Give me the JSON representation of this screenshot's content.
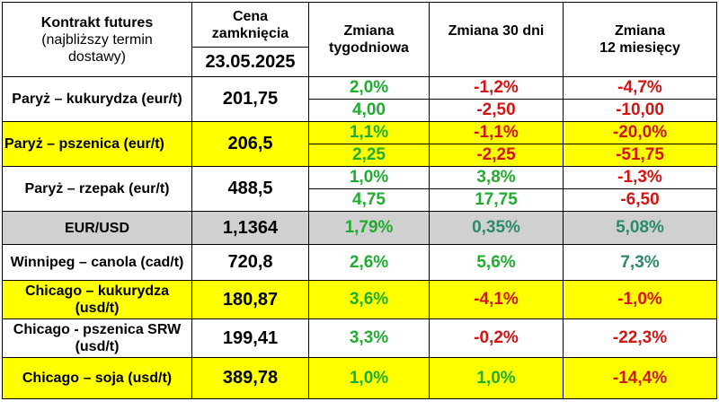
{
  "header": {
    "contract_title": "Kontrakt futures",
    "contract_sub1": "(najbliższy termin",
    "contract_sub2": "dostawy)",
    "price_title1": "Cena",
    "price_title2": "zamknięcia",
    "date": "23.05.2025",
    "weekly1": "Zmiana",
    "weekly2": "tygodniowa",
    "monthly": "Zmiana 30 dni",
    "yearly1": "Zmiana",
    "yearly2": "12 miesięcy"
  },
  "rows": [
    {
      "name": "Paryż – kukurydza (eur/t)",
      "price": "201,75",
      "w_pct": "2,0%",
      "w_abs": "4,00",
      "m_pct": "-1,2%",
      "m_abs": "-2,50",
      "y_pct": "-4,7%",
      "y_abs": "-10,00"
    },
    {
      "name": "Paryż – pszenica (eur/t)",
      "price": "206,5",
      "w_pct": "1,1%",
      "w_abs": "2,25",
      "m_pct": "-1,1%",
      "m_abs": "-2,25",
      "y_pct": "-20,0%",
      "y_abs": "-51,75"
    },
    {
      "name": "Paryż – rzepak (eur/t)",
      "price": "488,5",
      "w_pct": "1,0%",
      "w_abs": "4,75",
      "m_pct": "3,8%",
      "m_abs": "17,75",
      "y_pct": "-1,3%",
      "y_abs": "-6,50"
    },
    {
      "name": "EUR/USD",
      "price": "1,1364",
      "w": "1,79%",
      "m": "0,35%",
      "y": "5,08%"
    },
    {
      "name": "Winnipeg – canola (cad/t)",
      "price": "720,8",
      "w": "2,6%",
      "m": "5,6%",
      "y": "7,3%"
    },
    {
      "name": "Chicago – kukurydza (usd/t)",
      "price": "180,87",
      "w": "3,6%",
      "m": "-4,1%",
      "y": "-1,0%"
    },
    {
      "name": "Chicago - pszenica SRW (usd/t)",
      "price": "199,41",
      "w": "3,3%",
      "m": "-0,2%",
      "y": "-22,3%"
    },
    {
      "name": "Chicago – soja (usd/t)",
      "price": "389,78",
      "w": "1,0%",
      "m": "1,0%",
      "y": "-14,4%"
    }
  ],
  "colors": {
    "yellow": "#ffff00",
    "gray": "#d0d0d0",
    "green": "#1fad2f",
    "red": "#d21414",
    "teal": "#2b8a6b"
  }
}
